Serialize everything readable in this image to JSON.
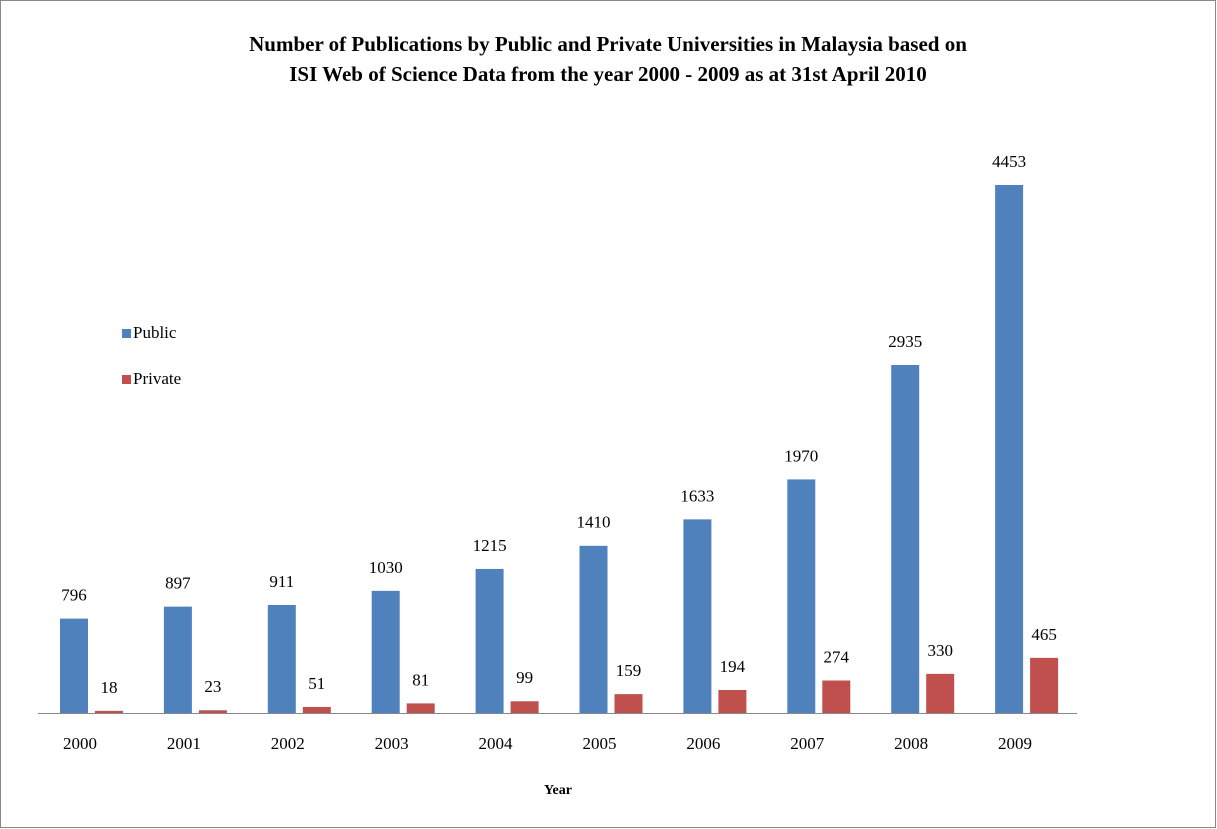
{
  "chart_data": {
    "type": "bar",
    "title": [
      "Number of Publications by Public and Private Universities in Malaysia based on",
      "ISI Web of Science Data from the year  2000 - 2009 as at 31st April 2010"
    ],
    "x_label": "Year",
    "categories": [
      "2000",
      "2001",
      "2002",
      "2003",
      "2004",
      "2005",
      "2006",
      "2007",
      "2008",
      "2009"
    ],
    "series": [
      {
        "name": "Public",
        "color": "#4f81bd",
        "values": [
          796,
          897,
          911,
          1030,
          1215,
          1410,
          1633,
          1970,
          2935,
          4453
        ]
      },
      {
        "name": "Private",
        "color": "#c0504d",
        "values": [
          18,
          23,
          51,
          81,
          99,
          159,
          194,
          274,
          330,
          465
        ]
      }
    ],
    "legend": "left"
  }
}
